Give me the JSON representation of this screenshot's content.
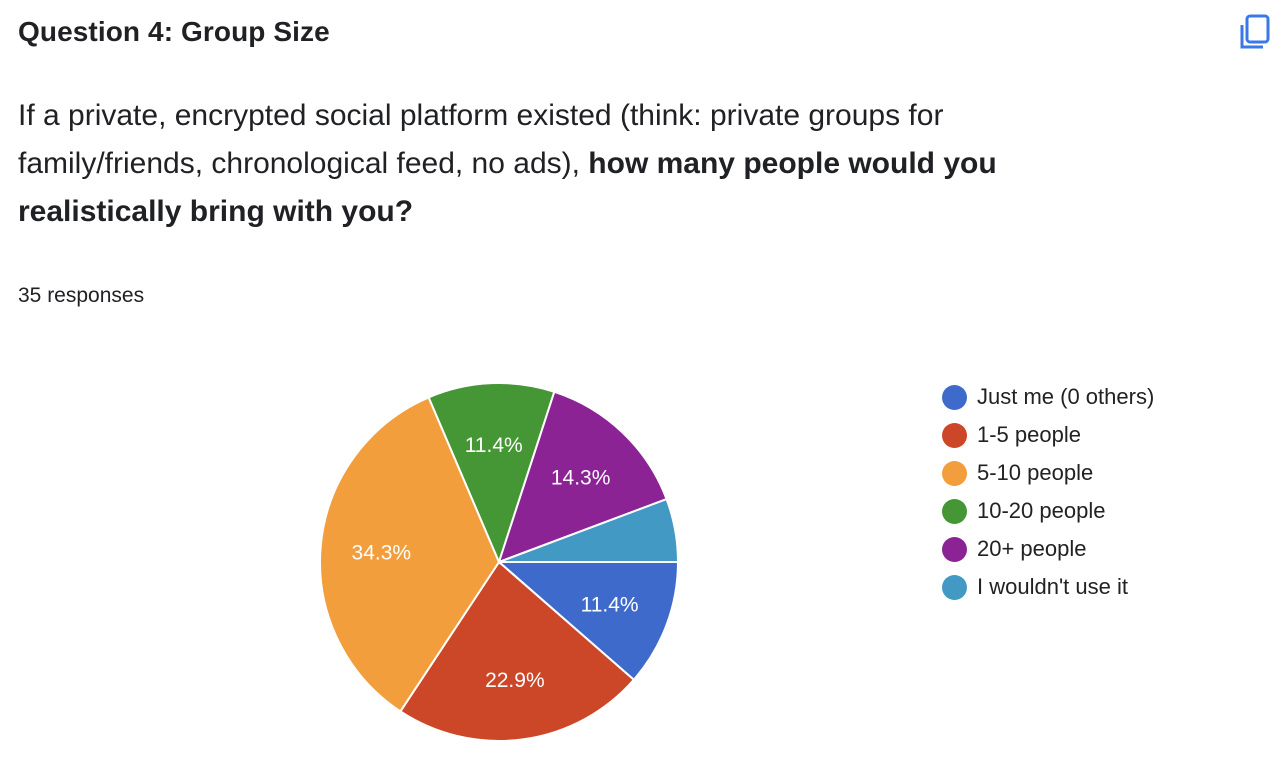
{
  "header": {
    "title": "Question 4: Group Size",
    "copy_icon": "copy-icon"
  },
  "question": {
    "text_regular": "If a private, encrypted social platform existed (think: private groups for family/friends, chronological feed, no ads), ",
    "text_bold": "how many people would you realistically bring with you?"
  },
  "responses_label": "35 responses",
  "legend": [
    {
      "label": "Just me (0 others)",
      "color": "#3e6bcb"
    },
    {
      "label": "1-5 people",
      "color": "#cc4728"
    },
    {
      "label": "5-10 people",
      "color": "#f29e3c"
    },
    {
      "label": "10-20 people",
      "color": "#459634"
    },
    {
      "label": "20+ people",
      "color": "#8b2395"
    },
    {
      "label": "I wouldn't use it",
      "color": "#4299c4"
    }
  ],
  "chart_data": {
    "type": "pie",
    "title": "Question 4: Group Size",
    "total_responses": 35,
    "categories": [
      "Just me (0 others)",
      "1-5 people",
      "5-10 people",
      "10-20 people",
      "20+ people",
      "I wouldn't use it"
    ],
    "values": [
      4,
      8,
      12,
      4,
      5,
      2
    ],
    "percentages": [
      11.4,
      22.9,
      34.3,
      11.4,
      14.3,
      5.7
    ],
    "data_labels": [
      "11.4%",
      "22.9%",
      "34.3%",
      "11.4%",
      "14.3%",
      ""
    ],
    "colors": [
      "#3e6bcb",
      "#cc4728",
      "#f29e3c",
      "#459634",
      "#8b2395",
      "#4299c4"
    ],
    "start_angle_deg": 0,
    "direction": "clockwise",
    "legend_position": "right"
  }
}
